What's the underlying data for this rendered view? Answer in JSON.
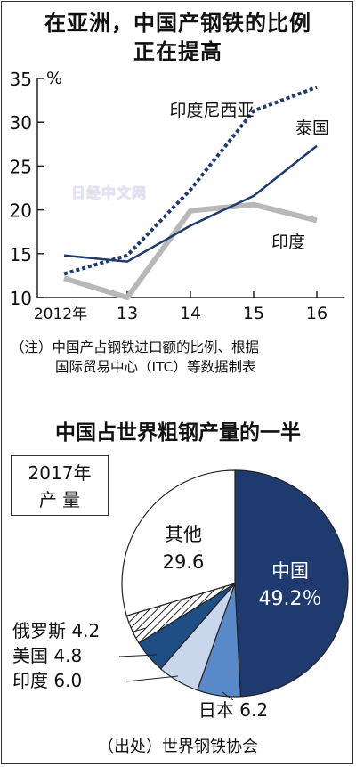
{
  "title_line1": "在亚洲，中国产钢铁的比例",
  "title_line2": "正在提高",
  "watermark": "日经中文网",
  "chart_data": [
    {
      "type": "line",
      "ylabel": "%",
      "ylim": [
        10,
        35
      ],
      "yticks": [
        10,
        15,
        20,
        25,
        30,
        35
      ],
      "x": [
        "2012年",
        "13",
        "14",
        "15",
        "16"
      ],
      "series": [
        {
          "name": "印度尼西亚",
          "values": [
            12.7,
            14.8,
            22.3,
            31.3,
            34.0
          ],
          "color": "#1f3a6e",
          "style": "dotted"
        },
        {
          "name": "泰国",
          "values": [
            14.8,
            14.1,
            18.2,
            21.6,
            27.3
          ],
          "color": "#1f3a6e",
          "style": "solid"
        },
        {
          "name": "印度",
          "values": [
            12.2,
            10.0,
            19.9,
            20.6,
            18.8
          ],
          "color": "#b8b8b8",
          "style": "thick"
        }
      ]
    },
    {
      "type": "pie",
      "title": "中国占世界粗钢产量的一半",
      "box_year": "2017年",
      "box_label": "产 量",
      "slices": [
        {
          "name": "中国",
          "value": 49.2,
          "label": "49.2％",
          "color": "#1f3a6e"
        },
        {
          "name": "日本",
          "value": 6.2,
          "label": "6.2",
          "color": "#5a89c9"
        },
        {
          "name": "印度",
          "value": 6.0,
          "label": "6.0",
          "color": "#c9d6ec"
        },
        {
          "name": "美国",
          "value": 4.8,
          "label": "4.8",
          "color": "#1f4e85"
        },
        {
          "name": "俄罗斯",
          "value": 4.2,
          "label": "4.2",
          "color": "hatch"
        },
        {
          "name": "其他",
          "value": 29.6,
          "label": "29.6",
          "color": "#ffffff"
        }
      ]
    }
  ],
  "note_line1": "（注）中国产占钢铁进口额的比例、根据",
  "note_line2": "国际贸易中心（ITC）等数据制表",
  "source": "（出处）世界钢铁协会"
}
